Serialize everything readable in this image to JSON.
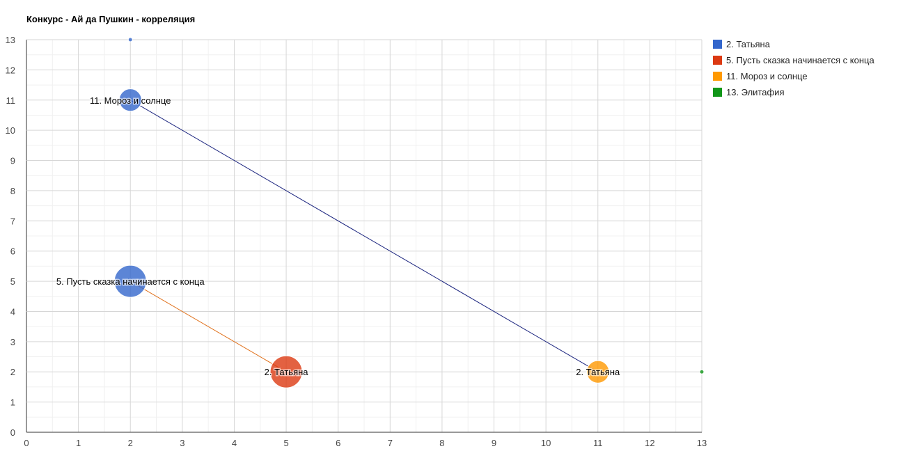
{
  "chart_data": {
    "type": "bubble",
    "title": "Конкурс - Ай да Пушкин - корреляция",
    "xlabel": "",
    "ylabel": "",
    "xlim": [
      0,
      13
    ],
    "ylim": [
      0,
      13
    ],
    "x_ticks": [
      "0",
      "1",
      "2",
      "3",
      "4",
      "5",
      "6",
      "7",
      "8",
      "9",
      "10",
      "11",
      "12",
      "13"
    ],
    "y_ticks": [
      "0",
      "1",
      "2",
      "3",
      "4",
      "5",
      "6",
      "7",
      "8",
      "9",
      "10",
      "11",
      "12",
      "13"
    ],
    "grid": true,
    "legend_position": "right",
    "series": [
      {
        "name": "2. Татьяна",
        "color": "#3366cc"
      },
      {
        "name": "5. Пусть сказка начинается с конца",
        "color": "#dc3912"
      },
      {
        "name": "11. Мороз и солнце",
        "color": "#ff9900"
      },
      {
        "name": "13. Элитафия",
        "color": "#109618"
      }
    ],
    "points": [
      {
        "series": 0,
        "x": 2,
        "y": 13,
        "size": 1,
        "label": ""
      },
      {
        "series": 0,
        "x": 2,
        "y": 11,
        "size": 4,
        "label": "11. Мороз и солнце"
      },
      {
        "series": 0,
        "x": 2,
        "y": 5,
        "size": 8,
        "label": "5. Пусть сказка начинается с конца"
      },
      {
        "series": 1,
        "x": 5,
        "y": 2,
        "size": 8,
        "label": "2. Татьяна"
      },
      {
        "series": 2,
        "x": 11,
        "y": 2,
        "size": 4,
        "label": "2. Татьяна"
      },
      {
        "series": 3,
        "x": 13,
        "y": 2,
        "size": 1,
        "label": ""
      }
    ],
    "connectors": [
      {
        "from": [
          2,
          11
        ],
        "to": [
          11,
          2
        ],
        "color": "#1a237e"
      },
      {
        "from": [
          2,
          5
        ],
        "to": [
          5,
          2
        ],
        "color": "#e0701a"
      }
    ]
  }
}
